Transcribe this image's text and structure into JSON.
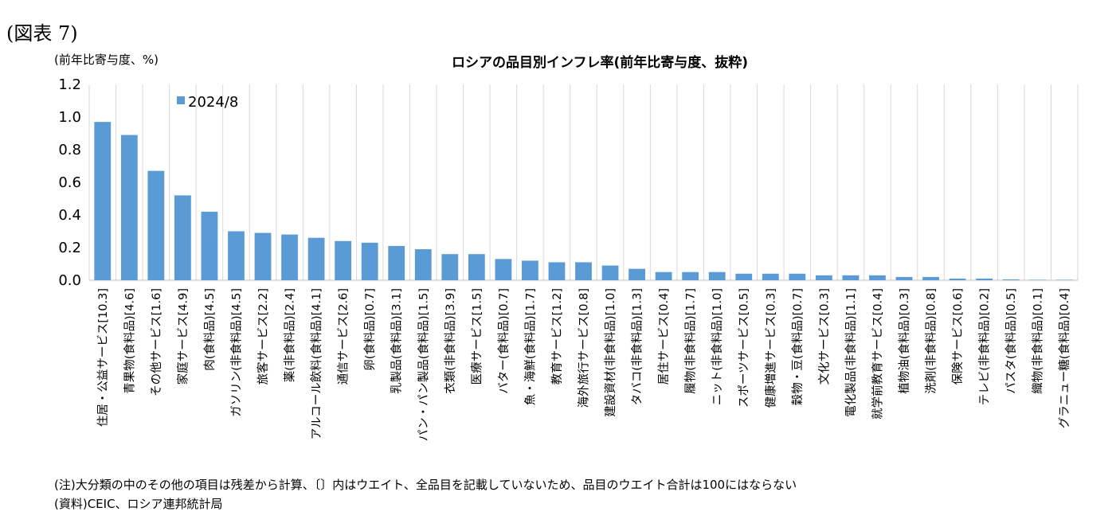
{
  "figure_label": "(図表 7)",
  "chart_data": {
    "type": "bar",
    "title": "ロシアの品目別インフレ率(前年比寄与度、抜粋)",
    "ylabel": "(前年比寄与度、%)",
    "xlabel": "",
    "ylim": [
      0,
      1.2
    ],
    "yticks": [
      "0.0",
      "0.2",
      "0.4",
      "0.6",
      "0.8",
      "1.0",
      "1.2"
    ],
    "ytick_values": [
      0,
      0.2,
      0.4,
      0.6,
      0.8,
      1.0,
      1.2
    ],
    "legend": "top-left",
    "grid": true,
    "categories": [
      "住居・公益サービス[10.3]",
      "青果物(食料品)[4.6]",
      "その他サービス[1.6]",
      "家庭サービス[4.9]",
      "肉(食料品)[4.5]",
      "ガソリン(非食料品)[4.5]",
      "旅客サービス[2.2]",
      "薬(非食料品)[2.4]",
      "アルコール飲料(食料品)[4.1]",
      "通信サービス[2.6]",
      "卵(食料品)[0.7]",
      "乳製品(食料品)[3.1]",
      "パン・パン製品(食料品)[1.5]",
      "衣類(非食料品)[3.9]",
      "医療サービス[1.5]",
      "バター(食料品)[0.7]",
      "魚・海鮮(食料品)[1.7]",
      "教育サービス[1.2]",
      "海外旅行サービス[0.8]",
      "建設資材(非食料品)[1.0]",
      "タバコ(非食料品)[1.3]",
      "居住サービス[0.4]",
      "履物(非食料品)[1.7]",
      "ニット(非食料品)[1.0]",
      "スポーツサービス[0.5]",
      "健康増進サービス[0.3]",
      "穀物・豆(食料品)[0.7]",
      "文化サービス[0.3]",
      "電化製品(非食料品)[1.1]",
      "就学前教育サービス[0.4]",
      "植物油(食料品)[0.3]",
      "洗剤(非食料品)[0.8]",
      "保険サービス[0.6]",
      "テレビ(非食料品)[0.2]",
      "パスタ(食料品)[0.5]",
      "織物(非食料品)[0.1]",
      "グラニュー糖(食料品)[0.4]"
    ],
    "series": [
      {
        "name": "2024/8",
        "color": "#5b9bd5",
        "values": [
          0.97,
          0.89,
          0.67,
          0.52,
          0.42,
          0.3,
          0.29,
          0.28,
          0.26,
          0.24,
          0.23,
          0.21,
          0.19,
          0.16,
          0.16,
          0.13,
          0.12,
          0.11,
          0.11,
          0.09,
          0.07,
          0.05,
          0.05,
          0.05,
          0.04,
          0.04,
          0.04,
          0.03,
          0.03,
          0.03,
          0.02,
          0.02,
          0.01,
          0.01,
          0.005,
          0.002,
          0.001
        ]
      }
    ]
  },
  "notes": {
    "note1": "(注)大分類の中のその他の項目は残差から計算、〔〕内はウエイト、全品目を記載していないため、品目のウエイト合計は100にはならない",
    "note2": "(資料)CEIC、ロシア連邦統計局"
  }
}
